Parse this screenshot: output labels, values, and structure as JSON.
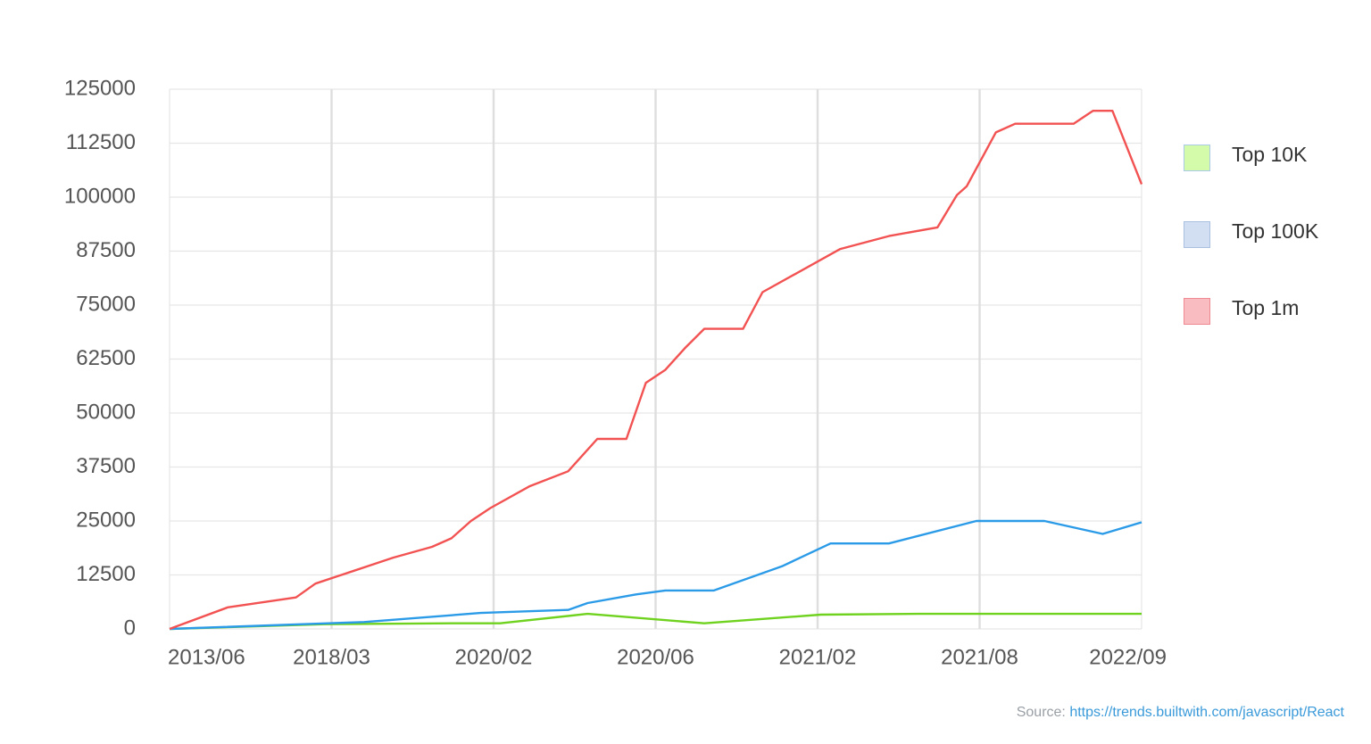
{
  "chart_data": {
    "type": "line",
    "x": [
      "2013/06",
      "2018/03",
      "2020/02",
      "2020/06",
      "2021/02",
      "2021/08",
      "2022/09"
    ],
    "ylim": [
      0,
      125000
    ],
    "yticks": [
      0,
      12500,
      25000,
      37500,
      50000,
      62500,
      75000,
      87500,
      100000,
      112500,
      125000
    ],
    "ytick_labels": [
      "0",
      "12500",
      "25000",
      "37500",
      "50000",
      "62500",
      "75000",
      "87500",
      "100000",
      "112500",
      "125000"
    ],
    "grid": true,
    "legend_position": "right",
    "series": [
      {
        "name": "Top 10K",
        "color": "#6fd21e",
        "swatch_fill": "#d4fba9",
        "swatch_border": "#a9c9e8",
        "points": [
          [
            0,
            0
          ],
          [
            0.16,
            1100
          ],
          [
            0.29,
            1300
          ],
          [
            0.34,
            1300
          ],
          [
            0.43,
            3500
          ],
          [
            0.55,
            1300
          ],
          [
            0.67,
            3300
          ],
          [
            0.77,
            3500
          ],
          [
            1.0,
            3500
          ]
        ]
      },
      {
        "name": "Top 100K",
        "color": "#2b9be8",
        "swatch_fill": "#d2def2",
        "swatch_border": "#a9c0e0",
        "points": [
          [
            0,
            0
          ],
          [
            0.2,
            1600
          ],
          [
            0.32,
            3700
          ],
          [
            0.41,
            4400
          ],
          [
            0.43,
            6000
          ],
          [
            0.48,
            8000
          ],
          [
            0.51,
            8900
          ],
          [
            0.56,
            8900
          ],
          [
            0.63,
            14500
          ],
          [
            0.68,
            19800
          ],
          [
            0.74,
            19800
          ],
          [
            0.83,
            25000
          ],
          [
            0.9,
            25000
          ],
          [
            0.96,
            22000
          ],
          [
            1.0,
            24700
          ]
        ]
      },
      {
        "name": "Top 1m",
        "color": "#f25252",
        "swatch_fill": "#f9bcc0",
        "swatch_border": "#ef8a92",
        "points": [
          [
            0,
            0
          ],
          [
            0.06,
            5000
          ],
          [
            0.13,
            7300
          ],
          [
            0.15,
            10500
          ],
          [
            0.19,
            13500
          ],
          [
            0.23,
            16500
          ],
          [
            0.27,
            19000
          ],
          [
            0.29,
            21000
          ],
          [
            0.31,
            25000
          ],
          [
            0.33,
            28000
          ],
          [
            0.37,
            33000
          ],
          [
            0.41,
            36500
          ],
          [
            0.44,
            44000
          ],
          [
            0.47,
            44000
          ],
          [
            0.49,
            57000
          ],
          [
            0.51,
            60000
          ],
          [
            0.53,
            65000
          ],
          [
            0.55,
            69500
          ],
          [
            0.57,
            69500
          ],
          [
            0.59,
            69500
          ],
          [
            0.61,
            78000
          ],
          [
            0.69,
            88000
          ],
          [
            0.74,
            91000
          ],
          [
            0.79,
            93000
          ],
          [
            0.81,
            100500
          ],
          [
            0.82,
            102500
          ],
          [
            0.85,
            115000
          ],
          [
            0.87,
            117000
          ],
          [
            0.9,
            117000
          ],
          [
            0.93,
            117000
          ],
          [
            0.95,
            120000
          ],
          [
            0.97,
            120000
          ],
          [
            1.0,
            103000
          ]
        ]
      }
    ]
  },
  "legend": {
    "items": [
      {
        "label": "Top 10K"
      },
      {
        "label": "Top 100K"
      },
      {
        "label": "Top 1m"
      }
    ]
  },
  "source": {
    "prefix": "Source: ",
    "link_text": "https://trends.builtwith.com/javascript/React"
  }
}
